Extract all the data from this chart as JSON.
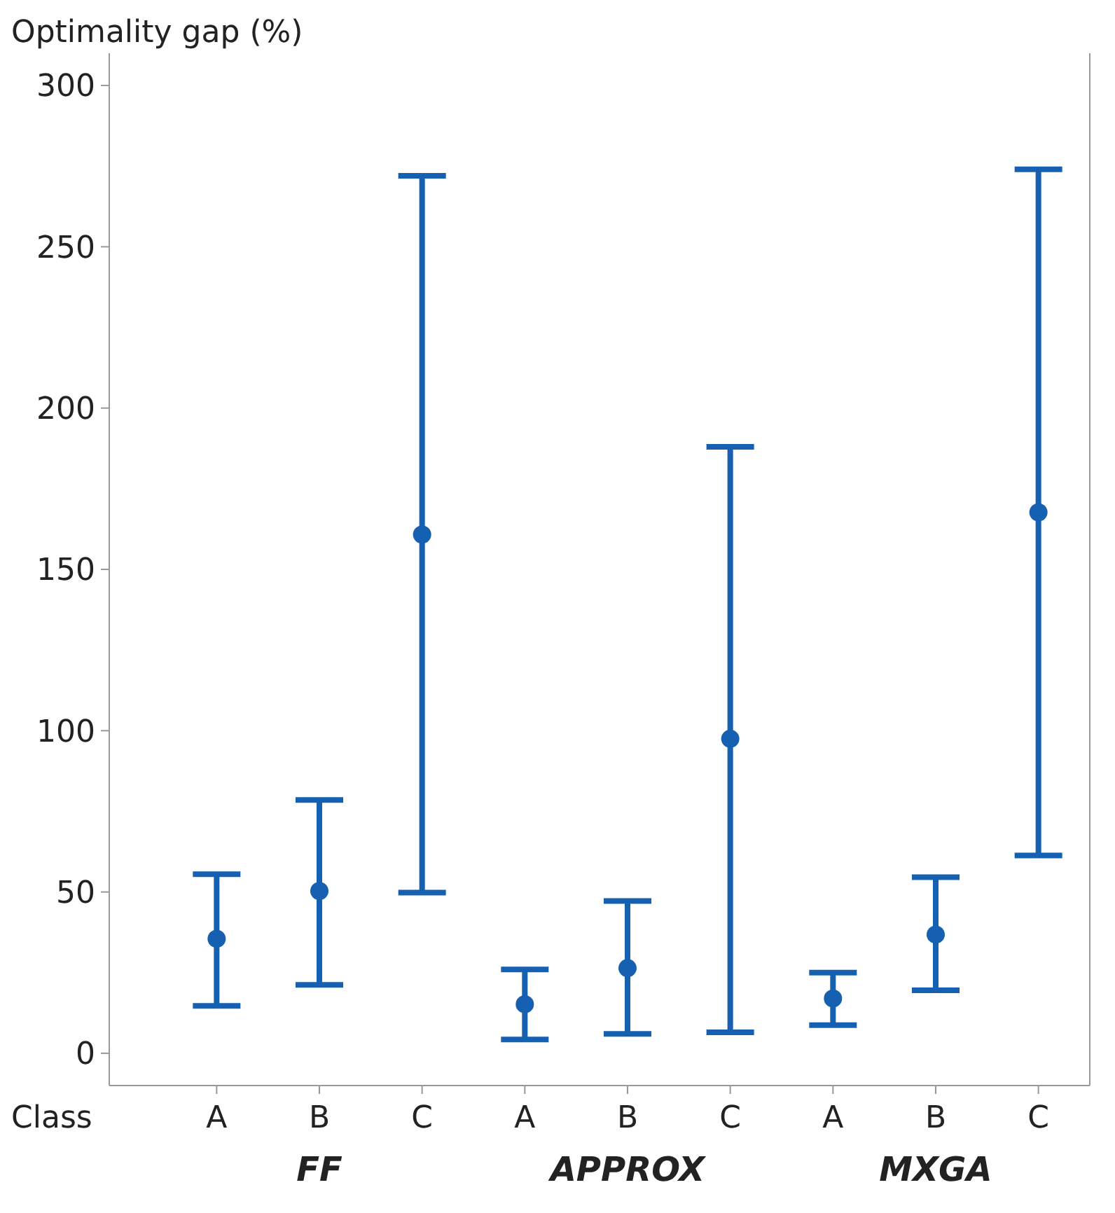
{
  "chart_data": {
    "type": "scatter",
    "ylabel": "Optimality gap (%)",
    "xlabel": "Class",
    "categories": [
      "A",
      "B",
      "C",
      "A",
      "B",
      "C",
      "A",
      "B",
      "C"
    ],
    "series": [
      {
        "color": "#1560b0",
        "values": [
          35.5,
          50.3,
          160.8,
          15.2,
          26.4,
          97.5,
          17,
          36.8,
          167.7
        ],
        "errors": [
          [
            14.7,
            55.5
          ],
          [
            21.2,
            78.5
          ],
          [
            49.8,
            272
          ],
          [
            4.3,
            26
          ],
          [
            6,
            47.2
          ],
          [
            6.5,
            188
          ],
          [
            8.7,
            25
          ],
          [
            19.5,
            54.6
          ],
          [
            61.3,
            274
          ]
        ]
      }
    ],
    "annotations": [
      "FF",
      "APPROX",
      "MXGA"
    ],
    "ylim": [
      -10,
      310
    ],
    "yticks": [
      0,
      50,
      100,
      150,
      200,
      250,
      300
    ],
    "marker": "circle",
    "grid": false
  }
}
